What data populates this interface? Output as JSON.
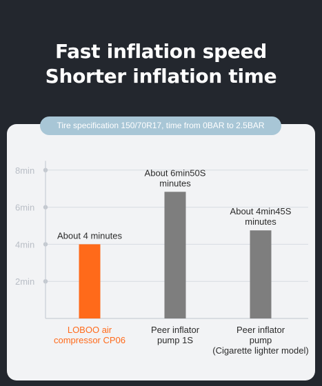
{
  "headline": {
    "line1": "Fast inflation speed",
    "line2": "Shorter inflation time"
  },
  "subtitle": "Tire specification 150/70R17, time from 0BAR to 2.5BAR",
  "colors": {
    "background": "#23272e",
    "card": "#f2f3f5",
    "pill": "#a8c6d6",
    "highlight_bar": "#ff6a1a",
    "highlight_text": "#ff6a1a",
    "peer_bar": "#7e7e7e",
    "axis_text": "#b9bec6",
    "grid": "#d6dbe2"
  },
  "chart_data": {
    "type": "bar",
    "ylabel": "",
    "xlabel": "",
    "ylim": [
      0,
      8.5
    ],
    "yticks": [
      2,
      4,
      6,
      8
    ],
    "ytick_labels": [
      "2min",
      "4min",
      "6min",
      "8min"
    ],
    "grid": true,
    "categories": [
      "LOBOO air compressor CP06",
      "Peer inflator pump 1S",
      "Peer inflator pump (Cigarette lighter model)"
    ],
    "category_lines": [
      [
        "LOBOO air",
        "compressor CP06"
      ],
      [
        "Peer inflator",
        "pump 1S"
      ],
      [
        "Peer inflator",
        "pump",
        "(Cigarette lighter model)"
      ]
    ],
    "values": [
      4.0,
      6.83,
      4.75
    ],
    "value_labels": [
      [
        "About 4 minutes"
      ],
      [
        "About 6min50S",
        "minutes"
      ],
      [
        "About 4min45S",
        "minutes"
      ]
    ],
    "highlight_index": 0
  }
}
